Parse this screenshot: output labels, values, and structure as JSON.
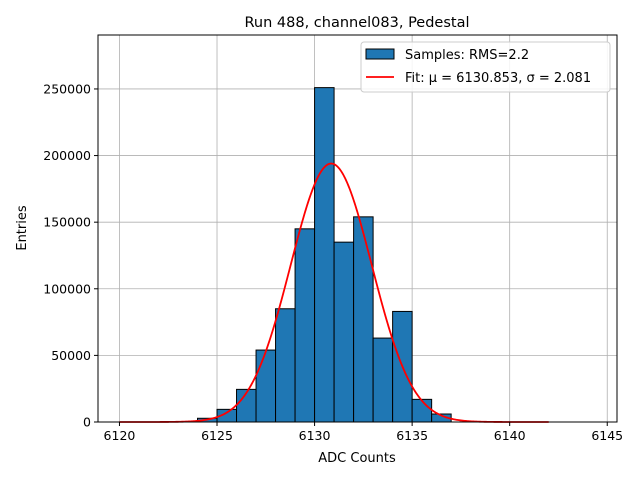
{
  "chart_data": {
    "type": "bar",
    "title": "Run 488, channel083, Pedestal",
    "xlabel": "ADC Counts",
    "ylabel": "Entries",
    "xlim": [
      6118.9,
      6145.5
    ],
    "ylim": [
      0,
      290500
    ],
    "grid": true,
    "legend_placement": "top-right",
    "x_ticks": [
      6120,
      6125,
      6130,
      6135,
      6140,
      6145
    ],
    "y_ticks": [
      0,
      50000,
      100000,
      150000,
      200000,
      250000
    ],
    "bin_edges": [
      6124,
      6125,
      6126,
      6127,
      6128,
      6129,
      6130,
      6131,
      6132,
      6133,
      6134,
      6135,
      6136,
      6137
    ],
    "values": [
      2800,
      9500,
      24500,
      54000,
      85000,
      145000,
      251000,
      135000,
      154000,
      63000,
      83000,
      17000,
      6000
    ],
    "bar_color": "#1f77b4",
    "fit": {
      "mu": 6130.853,
      "sigma": 2.081,
      "amplitude": 194000,
      "x_range": [
        6120,
        6142
      ],
      "color": "#ff0000"
    },
    "legend": [
      "Samples: RMS=2.2",
      "Fit: μ = 6130.853, σ = 2.081"
    ]
  }
}
